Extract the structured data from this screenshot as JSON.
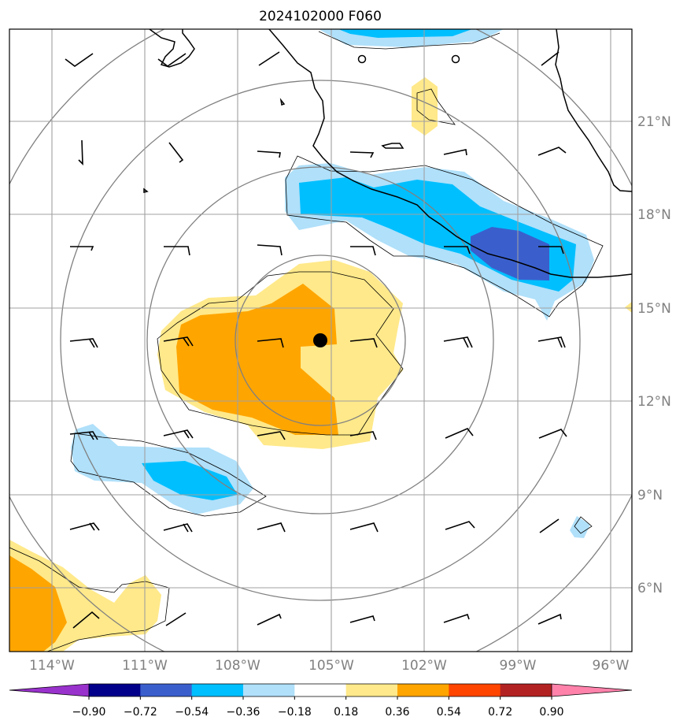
{
  "map": {
    "title": "2024102000 F060",
    "longitude_labels": [
      "114°W",
      "111°W",
      "108°W",
      "105°W",
      "102°W",
      "99°W",
      "96°W"
    ],
    "latitude_labels": [
      "21°N",
      "18°N",
      "15°N",
      "12°N",
      "9°N",
      "6°N"
    ],
    "center_marker": "storm-center"
  },
  "colorbar": {
    "tick_labels": [
      "−0.90",
      "−0.72",
      "−0.54",
      "−0.36",
      "−0.18",
      "0.18",
      "0.36",
      "0.54",
      "0.72",
      "0.90"
    ],
    "colors": [
      "#9932cc",
      "#00008b",
      "#3a5fcd",
      "#00bfff",
      "#b0e0fa",
      "#ffffff",
      "#ffe98a",
      "#ffa500",
      "#ff4500",
      "#b22222",
      "#ff82ab"
    ]
  },
  "colors": {
    "blue_light": "#b0e0fa",
    "blue_mid": "#00bfff",
    "blue_dark": "#3a5fcd",
    "yellow": "#ffe98a",
    "orange": "#ffa500",
    "grid": "#a0a0a0",
    "range_rings": "#808080"
  }
}
